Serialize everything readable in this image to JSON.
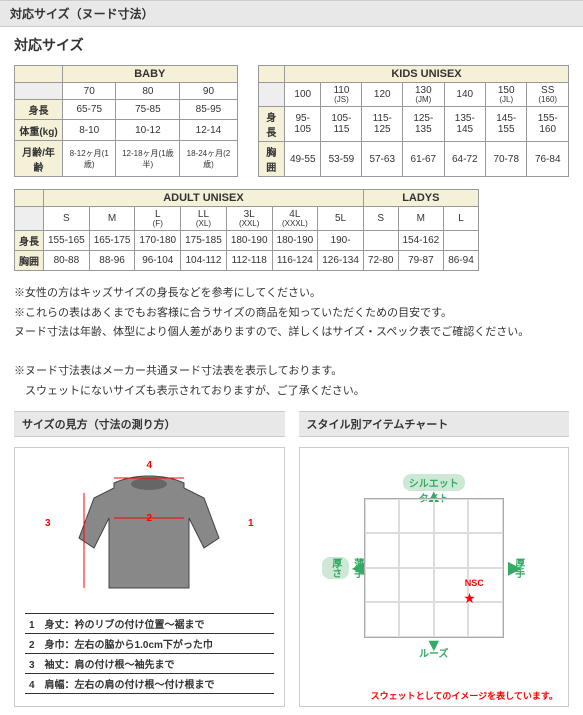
{
  "header": "対応サイズ（ヌード寸法）",
  "title": "対応サイズ",
  "baby": {
    "title": "BABY",
    "sizes": [
      "70",
      "80",
      "90"
    ],
    "rows": [
      {
        "h": "身長",
        "v": [
          "65-75",
          "75-85",
          "85-95"
        ]
      },
      {
        "h": "体重(kg)",
        "v": [
          "8-10",
          "10-12",
          "12-14"
        ]
      },
      {
        "h": "月齢/年齢",
        "v": [
          "8-12ヶ月(1歳)",
          "12-18ヶ月(1歳半)",
          "18-24ヶ月(2歳)"
        ]
      }
    ]
  },
  "kids": {
    "title": "KIDS UNISEX",
    "sizes": [
      {
        "m": "100"
      },
      {
        "m": "110",
        "s": "(JS)"
      },
      {
        "m": "120"
      },
      {
        "m": "130",
        "s": "(JM)"
      },
      {
        "m": "140"
      },
      {
        "m": "150",
        "s": "(JL)"
      },
      {
        "m": "SS",
        "s": "(160)"
      }
    ],
    "rows": [
      {
        "h": "身長",
        "v": [
          "95-105",
          "105-115",
          "115-125",
          "125-135",
          "135-145",
          "145-155",
          "155-160"
        ]
      },
      {
        "h": "胸囲",
        "v": [
          "49-55",
          "53-59",
          "57-63",
          "61-67",
          "64-72",
          "70-78",
          "76-84"
        ]
      }
    ]
  },
  "adult": {
    "title": "ADULT UNISEX",
    "sizes": [
      {
        "m": "S"
      },
      {
        "m": "M"
      },
      {
        "m": "L",
        "s": "(F)"
      },
      {
        "m": "LL",
        "s": "(XL)"
      },
      {
        "m": "3L",
        "s": "(XXL)"
      },
      {
        "m": "4L",
        "s": "(XXXL)"
      },
      {
        "m": "5L"
      }
    ],
    "rows": [
      {
        "h": "身長",
        "v": [
          "155-165",
          "165-175",
          "170-180",
          "175-185",
          "180-190",
          "180-190",
          "190-"
        ]
      },
      {
        "h": "胸囲",
        "v": [
          "80-88",
          "88-96",
          "96-104",
          "104-112",
          "112-118",
          "116-124",
          "126-134"
        ]
      }
    ]
  },
  "ladys": {
    "title": "LADYS",
    "sizes": [
      "S",
      "M",
      "L"
    ],
    "rows": [
      {
        "h": "",
        "v": [
          "",
          "154-162",
          ""
        ]
      },
      {
        "h": "",
        "v": [
          "72-80",
          "79-87",
          "86-94"
        ]
      }
    ]
  },
  "notes": [
    "※女性の方はキッズサイズの身長などを参考にしてください。",
    "※これらの表はあくまでもお客様に合うサイズの商品を知っていただくための目安です。",
    "ヌード寸法は年齢、体型により個人差がありますので、詳しくはサイズ・スペック表でご確認ください。",
    "",
    "※ヌード寸法表はメーカー共通ヌード寸法表を表示しております。",
    "　スウェットにないサイズも表示されておりますが、ご了承ください。"
  ],
  "leftCol": {
    "title": "サイズの見方（寸法の測り方）",
    "dims": [
      "1",
      "2",
      "3",
      "4"
    ],
    "measures": [
      "1　身丈：衿のリブの付け位置～裾まで",
      "2　身巾：左右の脇から1.0cm下がった巾",
      "3　袖丈：肩の付け根～袖先まで",
      "4　肩幅：左右の肩の付け根～付け根まで"
    ]
  },
  "rightCol": {
    "title": "スタイル別アイテムチャート",
    "sil": "シルエット",
    "tight": "タイト",
    "loose": "ルーズ",
    "thick": "厚さ",
    "thin": "薄手",
    "heavy": "厚手",
    "nsc": "NSC",
    "caption": "スウェットとしてのイメージを表しています。"
  }
}
